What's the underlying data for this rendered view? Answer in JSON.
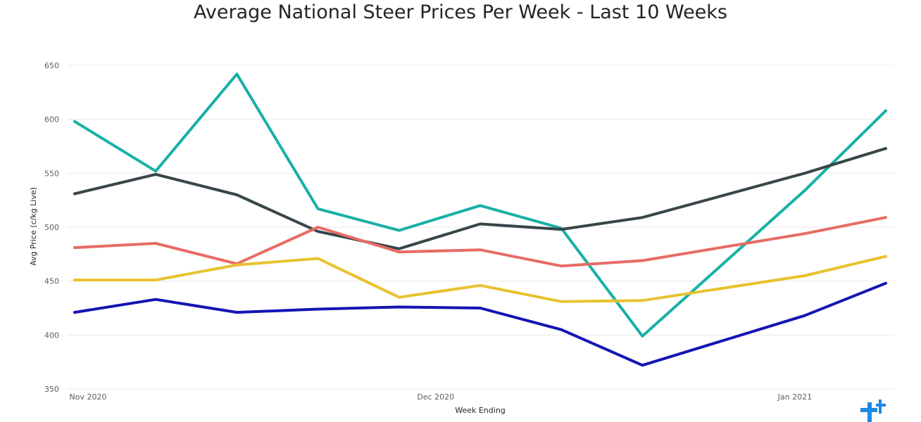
{
  "chart_data": {
    "type": "line",
    "title": "Average National Steer Prices Per Week - Last 10 Weeks",
    "xlabel": "Week Ending",
    "ylabel": "Avg Price (c/kg Live)",
    "ylim": [
      350,
      650
    ],
    "yticks": [
      350,
      400,
      450,
      500,
      550,
      600,
      650
    ],
    "x_tick_labels": [
      {
        "label": "Nov 2020",
        "date": "2020-11-01"
      },
      {
        "label": "Dec 2020",
        "date": "2020-12-01"
      },
      {
        "label": "Jan 2021",
        "date": "2021-01-01"
      }
    ],
    "x": [
      "2020-11-01",
      "2020-11-08",
      "2020-11-15",
      "2020-11-22",
      "2020-11-29",
      "2020-12-06",
      "2020-12-13",
      "2020-12-20",
      "2021-01-03",
      "2021-01-10"
    ],
    "grid": true,
    "series": [
      {
        "color": "#19b0a6",
        "values": [
          598,
          552,
          642,
          517,
          497,
          520,
          499,
          399,
          534,
          608
        ]
      },
      {
        "color": "#374649",
        "values": [
          531,
          549,
          530,
          496,
          480,
          503,
          498,
          509,
          550,
          573
        ]
      },
      {
        "color": "#e66c64",
        "values": [
          481,
          485,
          466,
          500,
          477,
          479,
          464,
          469,
          494,
          509
        ]
      },
      {
        "color": "#e8c22f",
        "values": [
          451,
          451,
          465,
          471,
          435,
          446,
          431,
          432,
          455,
          473
        ]
      },
      {
        "color": "#1414b4",
        "values": [
          421,
          433,
          421,
          424,
          426,
          425,
          405,
          372,
          418,
          448
        ]
      }
    ]
  },
  "logo": {
    "icon": "brand-logo-icon",
    "color": "#1e88e5"
  }
}
